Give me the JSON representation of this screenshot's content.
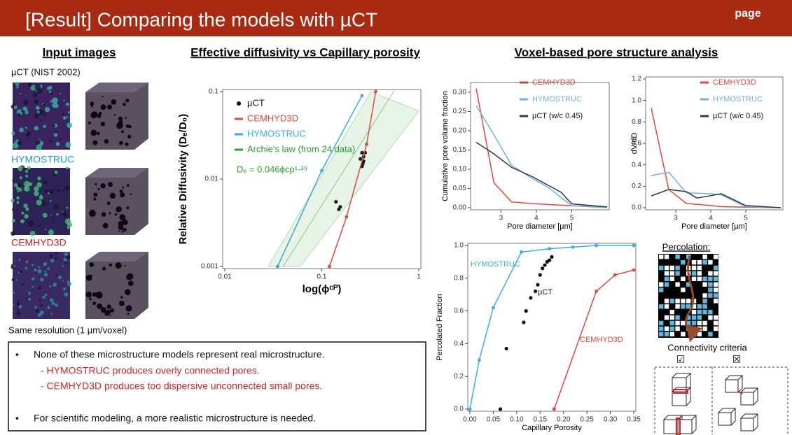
{
  "header": {
    "title": "[Result] Comparing the models with µCT",
    "page": "page"
  },
  "input_images": {
    "title": "Input images",
    "labels": [
      "µCT (NIST 2002)",
      "HYMOSTRUC",
      "CEMHYD3D"
    ],
    "footer": "Same resolution (1 µm/voxel)"
  },
  "conclusions": {
    "items": [
      "None of these microstructure models represent real microstructure.",
      "- HYMOSTRUC produces overly connected pores.",
      "- CEMHYD3D produces too dispersive unconnected small pores.",
      "For scientific modeling, a more realistic microstructure is needed."
    ]
  },
  "voxel_title": "Voxel-based pore structure analysis",
  "percolation": {
    "title": "Percolation:",
    "criteria": "Connectivity criteria",
    "check": "☑",
    "cross": "☒"
  },
  "chart_data": [
    {
      "type": "line",
      "title": "Effective diffusivity vs Capillary porosity",
      "x_label": "log(ϕᶜᴾ)",
      "y_label": "Relative Diffusivity (Dₑ/D₀)",
      "log_x": true,
      "log_y": true,
      "xlim": [
        0.01,
        1
      ],
      "ylim": [
        0.001,
        0.1
      ],
      "xticks": [
        0.01,
        0.1,
        1
      ],
      "yticks": [
        0.001,
        0.01,
        0.1
      ],
      "annotation": "Dₑ = 0.046ϕcp¹·³⁹",
      "series": [
        {
          "name": "µCT",
          "kind": "scatter",
          "color": "#111111",
          "x": [
            0.14,
            0.15,
            0.155,
            0.25,
            0.26,
            0.27,
            0.26,
            0.27,
            0.28,
            0.265
          ],
          "values": [
            0.0055,
            0.0045,
            0.0048,
            0.017,
            0.02,
            0.018,
            0.014,
            0.016,
            0.02,
            0.015
          ]
        },
        {
          "name": "CEMHYD3D",
          "kind": "line",
          "marker": true,
          "color": "#e8453c",
          "x": [
            0.12,
            0.18,
            0.29,
            0.36
          ],
          "values": [
            0.001,
            0.0037,
            0.025,
            0.1
          ]
        },
        {
          "name": "HYMOSTRUC",
          "kind": "line",
          "marker": true,
          "color": "#3aaee6",
          "x": [
            0.035,
            0.1,
            0.26
          ],
          "values": [
            0.001,
            0.0125,
            0.09
          ]
        },
        {
          "name": "Archie's law (from 24 data)",
          "kind": "band",
          "color": "#2e9e2e",
          "x": [
            0.04,
            0.55
          ],
          "values": [
            0.001,
            0.1
          ],
          "upper": {
            "x": [
              0.028,
              0.32
            ],
            "y": [
              0.001,
              0.1
            ]
          },
          "lower": {
            "x": [
              0.06,
              1
            ],
            "y": [
              0.001,
              0.06
            ]
          }
        }
      ]
    },
    {
      "type": "line",
      "x_label": "Pore diameter [µm]",
      "y_label": "Cumulative pore volume fraction",
      "xlim": [
        2.2,
        6
      ],
      "ylim": [
        0,
        0.32
      ],
      "xticks": [
        3,
        4,
        5
      ],
      "yticks": [
        {
          "value": 0,
          "label": "0.00"
        },
        0.05,
        {
          "value": 0.1,
          "label": "0.10"
        },
        0.15,
        {
          "value": 0.2,
          "label": "0.20"
        },
        0.25,
        {
          "value": 0.3,
          "label": "0.30"
        }
      ],
      "series": [
        {
          "name": "CEMHYD3D",
          "kind": "line",
          "color": "#e8453c",
          "x": [
            2.3,
            2.8,
            3.3,
            4,
            5,
            6
          ],
          "values": [
            0.31,
            0.065,
            0.015,
            0.01,
            0.005,
            0.002
          ]
        },
        {
          "name": "HYMOSTRUC",
          "kind": "line",
          "color": "#6fb2dc",
          "x": [
            2.3,
            2.8,
            3.3,
            3.9,
            4.3,
            5,
            6
          ],
          "values": [
            0.265,
            0.19,
            0.11,
            0.075,
            0.055,
            0.005,
            0
          ]
        },
        {
          "name": "µCT (w/c 0.45)",
          "kind": "line",
          "color": "#2c3a4a",
          "x": [
            2.3,
            2.8,
            3.3,
            3.9,
            4.3,
            4.7,
            5,
            6
          ],
          "values": [
            0.17,
            0.14,
            0.105,
            0.08,
            0.06,
            0.04,
            0.01,
            0.002
          ]
        }
      ]
    },
    {
      "type": "line",
      "x_label": "Pore diameter [µm]",
      "y_label": "dV/dD",
      "xlim": [
        2.2,
        6
      ],
      "ylim": [
        0,
        1.2
      ],
      "xticks": [
        3,
        4,
        5
      ],
      "yticks": [
        {
          "value": 0,
          "label": "0.0"
        },
        0.2,
        0.4,
        0.6,
        0.8,
        {
          "value": 1,
          "label": "1.0"
        },
        1.2
      ],
      "series": [
        {
          "name": "CEMHYD3D",
          "kind": "line",
          "color": "#e8453c",
          "x": [
            2.3,
            2.8,
            3.3,
            4,
            4.3,
            5,
            6
          ],
          "values": [
            0.93,
            0.17,
            0.04,
            0.02,
            0.01,
            0.005,
            0
          ]
        },
        {
          "name": "HYMOSTRUC",
          "kind": "line",
          "color": "#6fb2dc",
          "x": [
            2.3,
            2.8,
            3.3,
            4,
            4.3,
            5,
            6
          ],
          "values": [
            0.3,
            0.33,
            0.14,
            0.13,
            0.12,
            0.01,
            0
          ]
        },
        {
          "name": "µCT (w/c 0.45)",
          "kind": "line",
          "color": "#2c3a4a",
          "x": [
            2.3,
            2.8,
            3.3,
            3.6,
            4.3,
            5,
            6
          ],
          "values": [
            0.11,
            0.17,
            0.15,
            0.09,
            0.13,
            0.02,
            0
          ]
        }
      ]
    },
    {
      "type": "line",
      "x_label": "Capillary Porosity",
      "y_label": "Percolated Fraction",
      "xlim": [
        0,
        0.35
      ],
      "ylim": [
        0,
        1
      ],
      "xticks": [
        {
          "value": 0,
          "label": "0.00"
        },
        0.05,
        {
          "value": 0.1,
          "label": "0.10"
        },
        0.15,
        {
          "value": 0.2,
          "label": "0.20"
        },
        0.25,
        {
          "value": 0.3,
          "label": "0.30"
        },
        0.35
      ],
      "yticks": [
        {
          "value": 0,
          "label": "0.0"
        },
        0.2,
        0.4,
        0.6,
        0.8,
        {
          "value": 1,
          "label": "1.0"
        }
      ],
      "series": [
        {
          "name": "HYMOSTRUC",
          "kind": "line",
          "marker": true,
          "color": "#3aaee6",
          "x": [
            0,
            0.02,
            0.05,
            0.11,
            0.17,
            0.22,
            0.27,
            0.35
          ],
          "values": [
            0,
            0.3,
            0.62,
            0.96,
            0.98,
            0.99,
            1,
            1
          ]
        },
        {
          "name": "CEMHYD3D",
          "kind": "line",
          "marker": true,
          "color": "#e8453c",
          "x": [
            0.18,
            0.27,
            0.31,
            0.35
          ],
          "values": [
            0,
            0.72,
            0.82,
            0.85
          ]
        },
        {
          "name": "µCT",
          "kind": "scatter",
          "color": "#111111",
          "x": [
            0.065,
            0.078,
            0.115,
            0.12,
            0.13,
            0.14,
            0.145,
            0.15,
            0.155,
            0.16,
            0.165,
            0.17,
            0.175
          ],
          "values": [
            0,
            0.37,
            0.53,
            0.6,
            0.68,
            0.72,
            0.76,
            0.82,
            0.86,
            0.88,
            0.9,
            0.91,
            0.93
          ]
        }
      ]
    }
  ]
}
